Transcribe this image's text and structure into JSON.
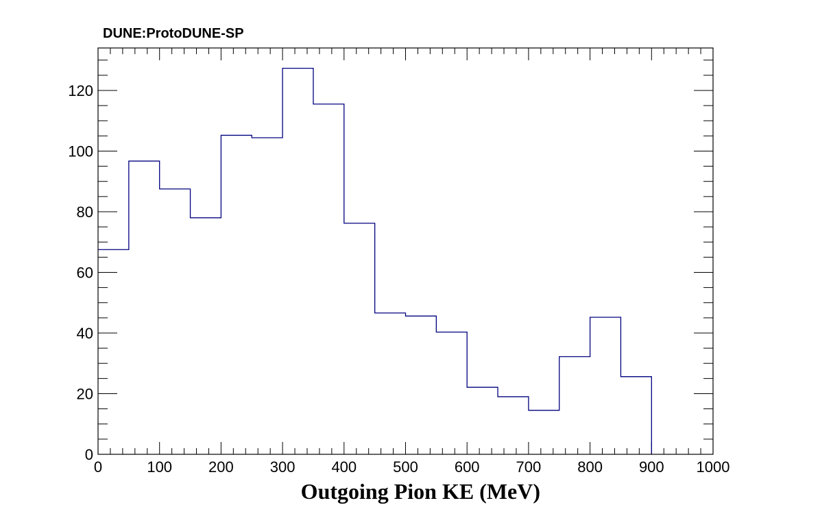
{
  "chart_data": {
    "type": "bar",
    "histogram": true,
    "title": "DUNE:ProtoDUNE-SP",
    "xlabel": "Outgoing Pion KE (MeV)",
    "ylabel": "",
    "xlim": [
      0,
      1000
    ],
    "ylim": [
      0,
      134
    ],
    "bin_edges": [
      0,
      50,
      100,
      150,
      200,
      250,
      300,
      350,
      400,
      450,
      500,
      550,
      600,
      650,
      700,
      750,
      800,
      850,
      900,
      950,
      1000
    ],
    "series": [
      {
        "color": "#00007f",
        "values": [
          67.5,
          96.7,
          87.5,
          78,
          105.2,
          104.4,
          127.3,
          115.5,
          76.2,
          46.6,
          45.6,
          40.3,
          22.1,
          19,
          14.5,
          32.2,
          45.2,
          25.6,
          0,
          0
        ]
      }
    ],
    "x_ticks": [
      "0",
      "100",
      "200",
      "300",
      "400",
      "500",
      "600",
      "700",
      "800",
      "900",
      "1000"
    ],
    "y_ticks": [
      "0",
      "20",
      "40",
      "60",
      "80",
      "100",
      "120"
    ],
    "grid": false
  }
}
